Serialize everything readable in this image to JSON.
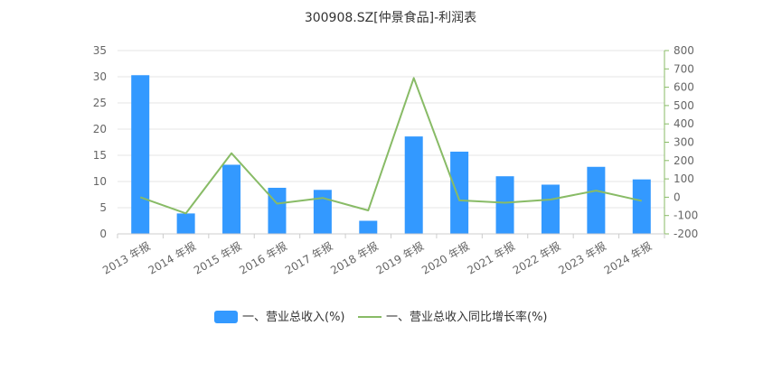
{
  "chart_data": {
    "type": "bar",
    "title": "300908.SZ[仲景食品]-利润表",
    "categories": [
      "2013 年报",
      "2014 年报",
      "2015 年报",
      "2016 年报",
      "2017 年报",
      "2018 年报",
      "2019 年报",
      "2020 年报",
      "2021 年报",
      "2022 年报",
      "2023 年报",
      "2024 年报"
    ],
    "series": [
      {
        "name": "一、营业总收入(%)",
        "type": "bar",
        "axis": "left",
        "color": "#3399ff",
        "values": [
          30.3,
          3.9,
          13.2,
          8.8,
          8.4,
          2.5,
          18.6,
          15.7,
          11.0,
          9.4,
          12.8,
          10.4
        ]
      },
      {
        "name": "一、营业总收入同比增长率(%)",
        "type": "line",
        "axis": "right",
        "color": "#88bb66",
        "values": [
          0,
          -88,
          240,
          -35,
          -4,
          -72,
          650,
          -17,
          -30,
          -13,
          36,
          -20
        ]
      }
    ],
    "y_left": {
      "min": 0,
      "max": 35,
      "ticks": [
        0,
        5,
        10,
        15,
        20,
        25,
        30,
        35
      ]
    },
    "y_right": {
      "min": -200,
      "max": 800,
      "ticks": [
        -200,
        -100,
        0,
        100,
        200,
        300,
        400,
        500,
        600,
        700,
        800
      ]
    },
    "grid": true,
    "legend": "bottom-center"
  }
}
